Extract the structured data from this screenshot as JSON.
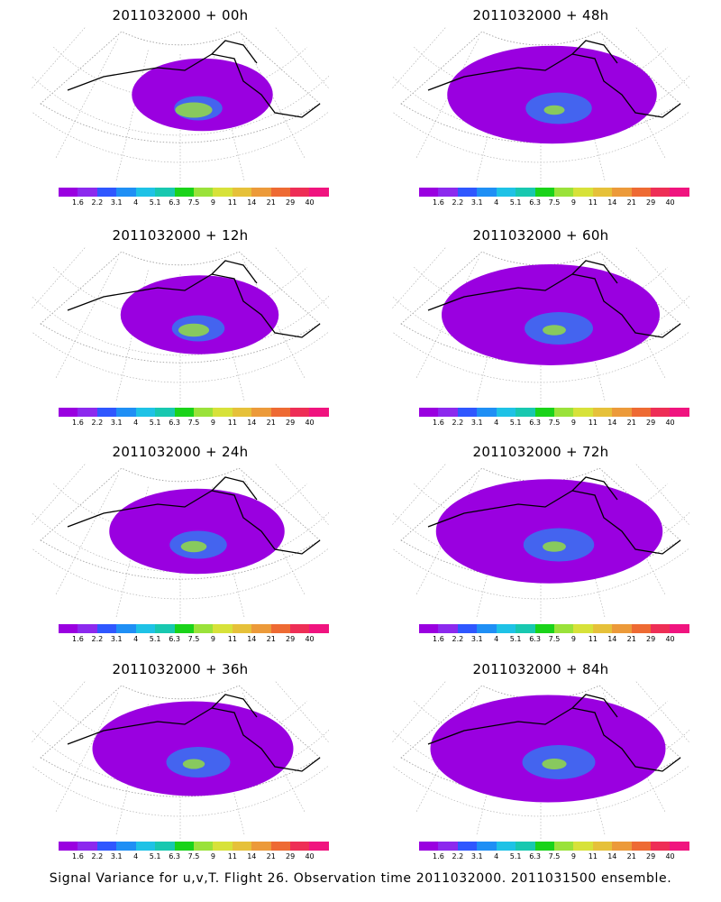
{
  "palette": [
    "#9a00e0",
    "#8c29ee",
    "#2f57ff",
    "#1f8ff5",
    "#1ec2e6",
    "#18c8b0",
    "#1ad31a",
    "#9ae23a",
    "#d7e23a",
    "#e6c13a",
    "#ec9a3a",
    "#ee6a33",
    "#ee2e56",
    "#f0147f"
  ],
  "colorbar_labels": [
    "1.6",
    "2.2",
    "3.1",
    "4",
    "5.1",
    "6.3",
    "7.5",
    "9",
    "11",
    "14",
    "21",
    "29",
    "40"
  ],
  "panels": [
    {
      "title": "2011032000 + 00h",
      "spread": 0.35,
      "peak": 0.9
    },
    {
      "title": "2011032000 + 48h",
      "spread": 0.75,
      "peak": 0.25
    },
    {
      "title": "2011032000 + 12h",
      "spread": 0.45,
      "peak": 0.65
    },
    {
      "title": "2011032000 + 60h",
      "spread": 0.8,
      "peak": 0.35
    },
    {
      "title": "2011032000 + 24h",
      "spread": 0.55,
      "peak": 0.45
    },
    {
      "title": "2011032000 + 72h",
      "spread": 0.85,
      "peak": 0.35
    },
    {
      "title": "2011032000 + 36h",
      "spread": 0.7,
      "peak": 0.3
    },
    {
      "title": "2011032000 + 84h",
      "spread": 0.9,
      "peak": 0.4
    }
  ],
  "footer": "Signal Variance for u,v,T. Flight 26. Observation time 2011032000. 2011031500 ensemble."
}
